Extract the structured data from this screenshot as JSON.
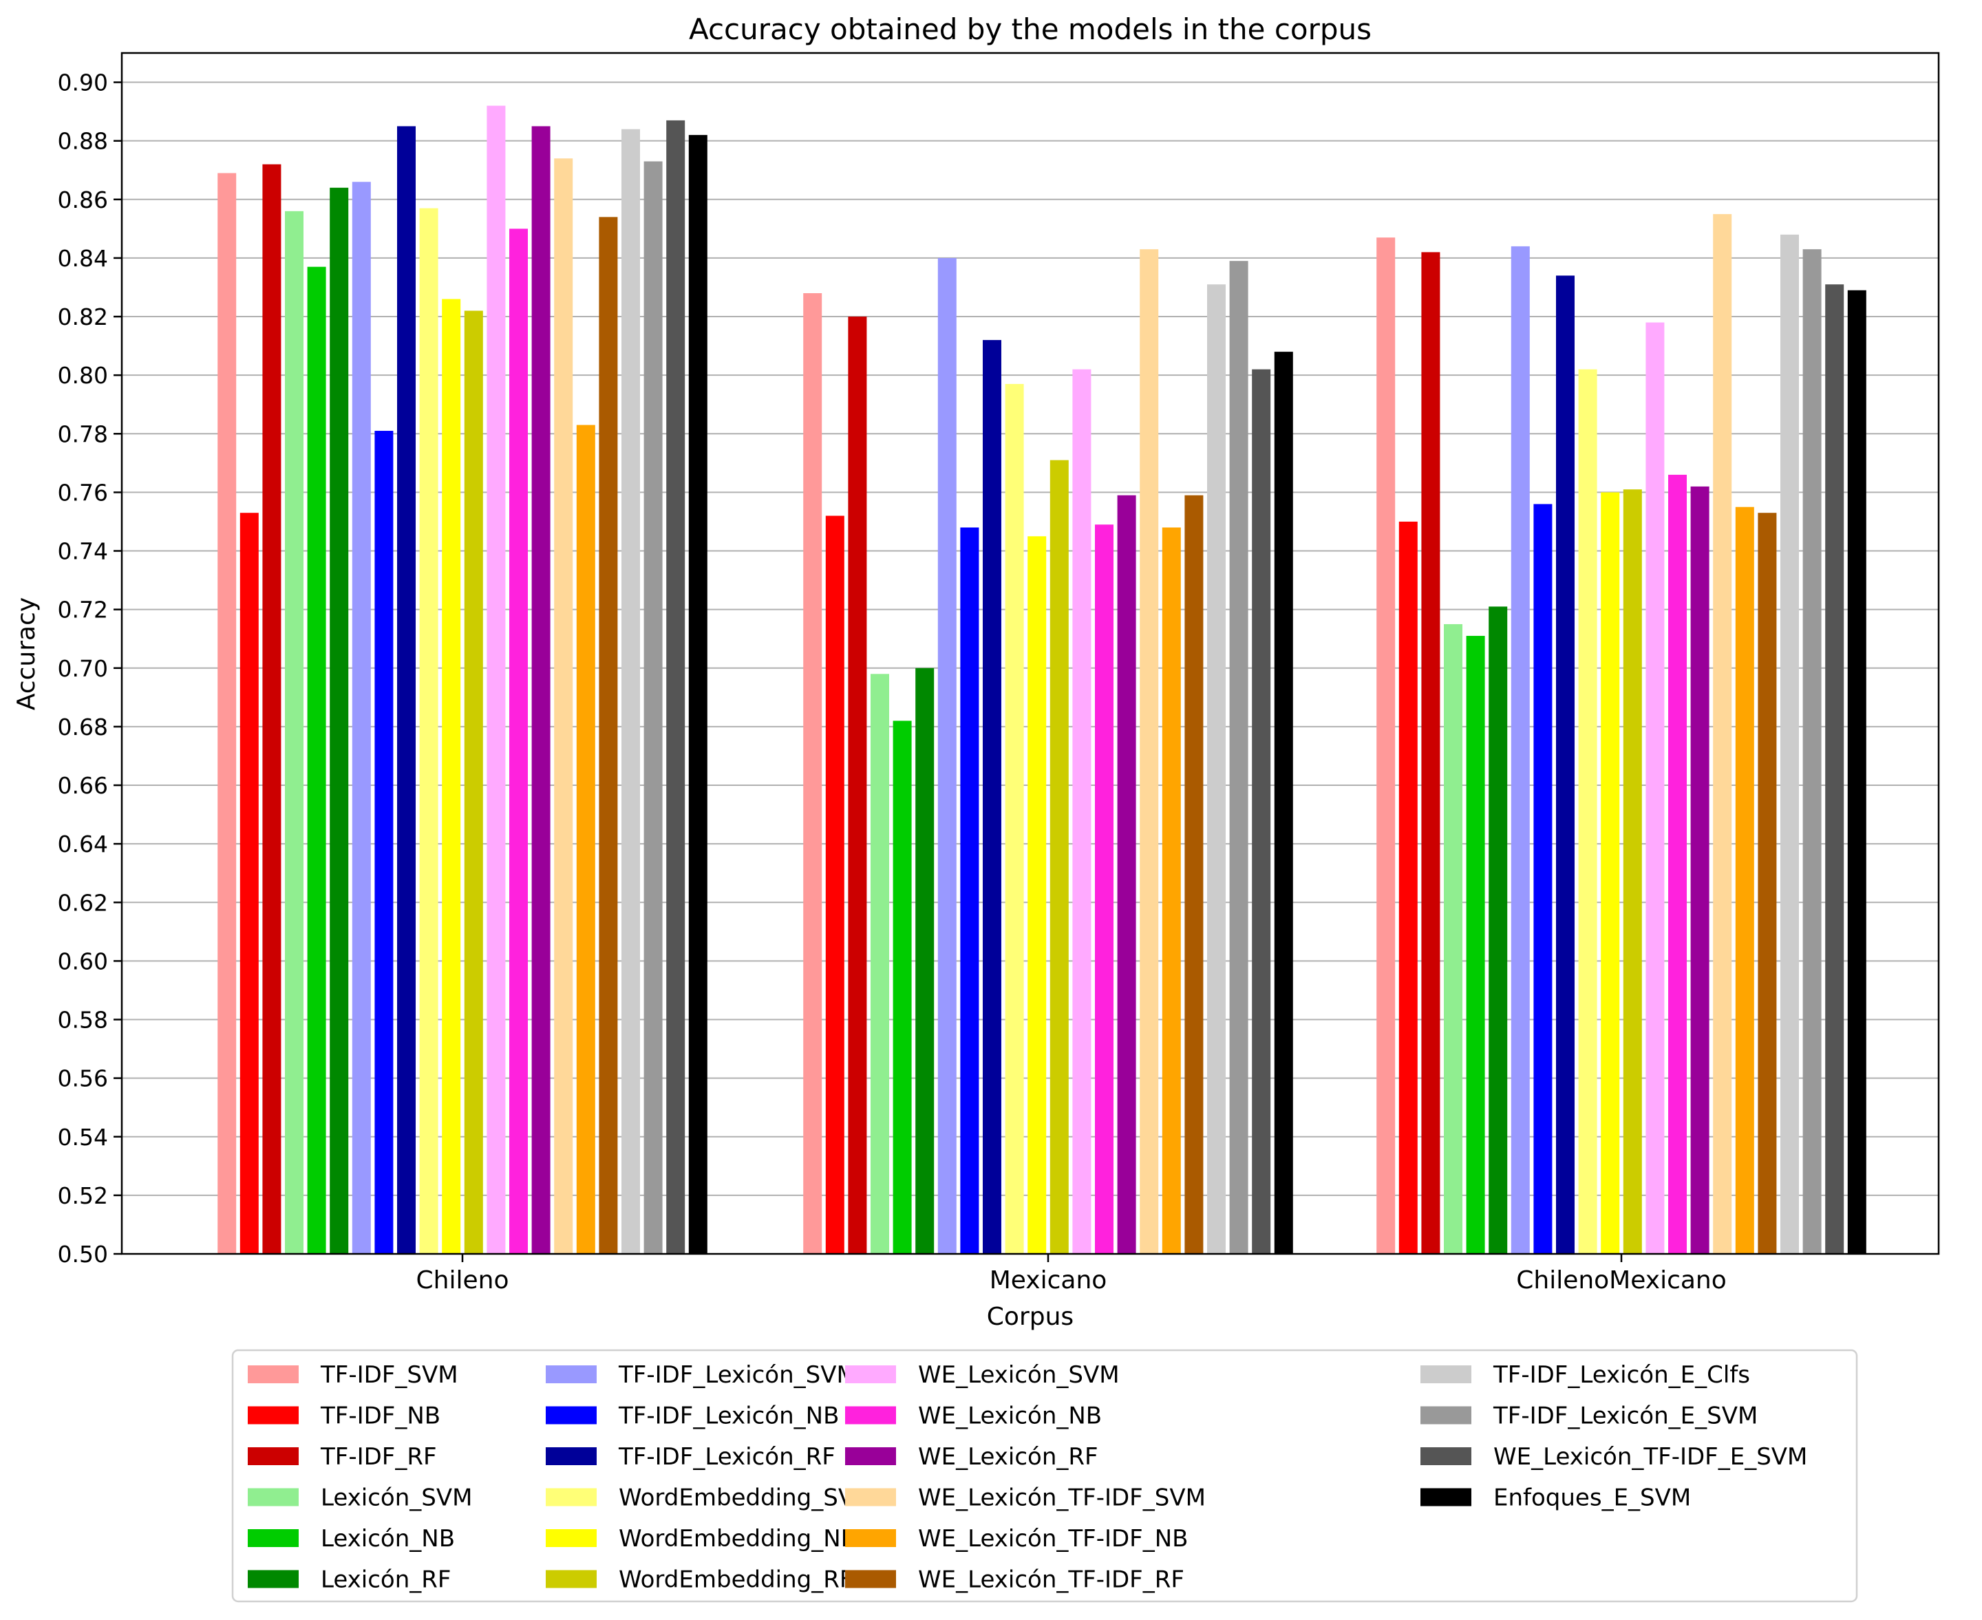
{
  "chart_data": {
    "type": "bar",
    "title": "Accuracy obtained by the models in the corpus",
    "xlabel": "Corpus",
    "ylabel": "Accuracy",
    "ylim": [
      0.5,
      0.9
    ],
    "yticks": [
      "0.50",
      "0.52",
      "0.54",
      "0.56",
      "0.58",
      "0.60",
      "0.62",
      "0.64",
      "0.66",
      "0.68",
      "0.70",
      "0.72",
      "0.74",
      "0.76",
      "0.78",
      "0.80",
      "0.82",
      "0.84",
      "0.86",
      "0.88",
      "0.90"
    ],
    "grid": "horizontal",
    "legend_position": "bottom",
    "categories": [
      "Chileno",
      "Mexicano",
      "ChilenoMexicano"
    ],
    "series": [
      {
        "name": "TF-IDF_SVM",
        "color": "#ff9999",
        "values": [
          0.869,
          0.828,
          0.847
        ]
      },
      {
        "name": "TF-IDF_NB",
        "color": "#ff0000",
        "values": [
          0.753,
          0.752,
          0.75
        ]
      },
      {
        "name": "TF-IDF_RF",
        "color": "#cc0000",
        "values": [
          0.872,
          0.82,
          0.842
        ]
      },
      {
        "name": "Lexicón_SVM",
        "color": "#90ee90",
        "values": [
          0.856,
          0.698,
          0.715
        ]
      },
      {
        "name": "Lexicón_NB",
        "color": "#00cc00",
        "values": [
          0.837,
          0.682,
          0.711
        ]
      },
      {
        "name": "Lexicón_RF",
        "color": "#008800",
        "values": [
          0.864,
          0.7,
          0.721
        ]
      },
      {
        "name": "TF-IDF_Lexicón_SVM",
        "color": "#9999ff",
        "values": [
          0.866,
          0.84,
          0.844
        ]
      },
      {
        "name": "TF-IDF_Lexicón_NB",
        "color": "#0000ff",
        "values": [
          0.781,
          0.748,
          0.756
        ]
      },
      {
        "name": "TF-IDF_Lexicón_RF",
        "color": "#000099",
        "values": [
          0.885,
          0.812,
          0.834
        ]
      },
      {
        "name": "WordEmbedding_SVM",
        "color": "#ffff77",
        "values": [
          0.857,
          0.797,
          0.802
        ]
      },
      {
        "name": "WordEmbedding_NB",
        "color": "#ffff00",
        "values": [
          0.826,
          0.745,
          0.76
        ]
      },
      {
        "name": "WordEmbedding_RF",
        "color": "#cccc00",
        "values": [
          0.822,
          0.771,
          0.761
        ]
      },
      {
        "name": "WE_Lexicón_SVM",
        "color": "#ffaaff",
        "values": [
          0.892,
          0.802,
          0.818
        ]
      },
      {
        "name": "WE_Lexicón_NB",
        "color": "#ff22dd",
        "values": [
          0.85,
          0.749,
          0.766
        ]
      },
      {
        "name": "WE_Lexicón_RF",
        "color": "#990099",
        "values": [
          0.885,
          0.759,
          0.762
        ]
      },
      {
        "name": "WE_Lexicón_TF-IDF_SVM",
        "color": "#ffd899",
        "values": [
          0.874,
          0.843,
          0.855
        ]
      },
      {
        "name": "WE_Lexicón_TF-IDF_NB",
        "color": "#ffa500",
        "values": [
          0.783,
          0.748,
          0.755
        ]
      },
      {
        "name": "WE_Lexicón_TF-IDF_RF",
        "color": "#aa5a00",
        "values": [
          0.854,
          0.759,
          0.753
        ]
      },
      {
        "name": "TF-IDF_Lexicón_E_Clfs",
        "color": "#cccccc",
        "values": [
          0.884,
          0.831,
          0.848
        ]
      },
      {
        "name": "TF-IDF_Lexicón_E_SVM",
        "color": "#999999",
        "values": [
          0.873,
          0.839,
          0.843
        ]
      },
      {
        "name": "WE_Lexicón_TF-IDF_E_SVM",
        "color": "#555555",
        "values": [
          0.887,
          0.802,
          0.831
        ]
      },
      {
        "name": "Enfoques_E_SVM",
        "color": "#000000",
        "values": [
          0.882,
          0.808,
          0.829
        ]
      }
    ]
  }
}
